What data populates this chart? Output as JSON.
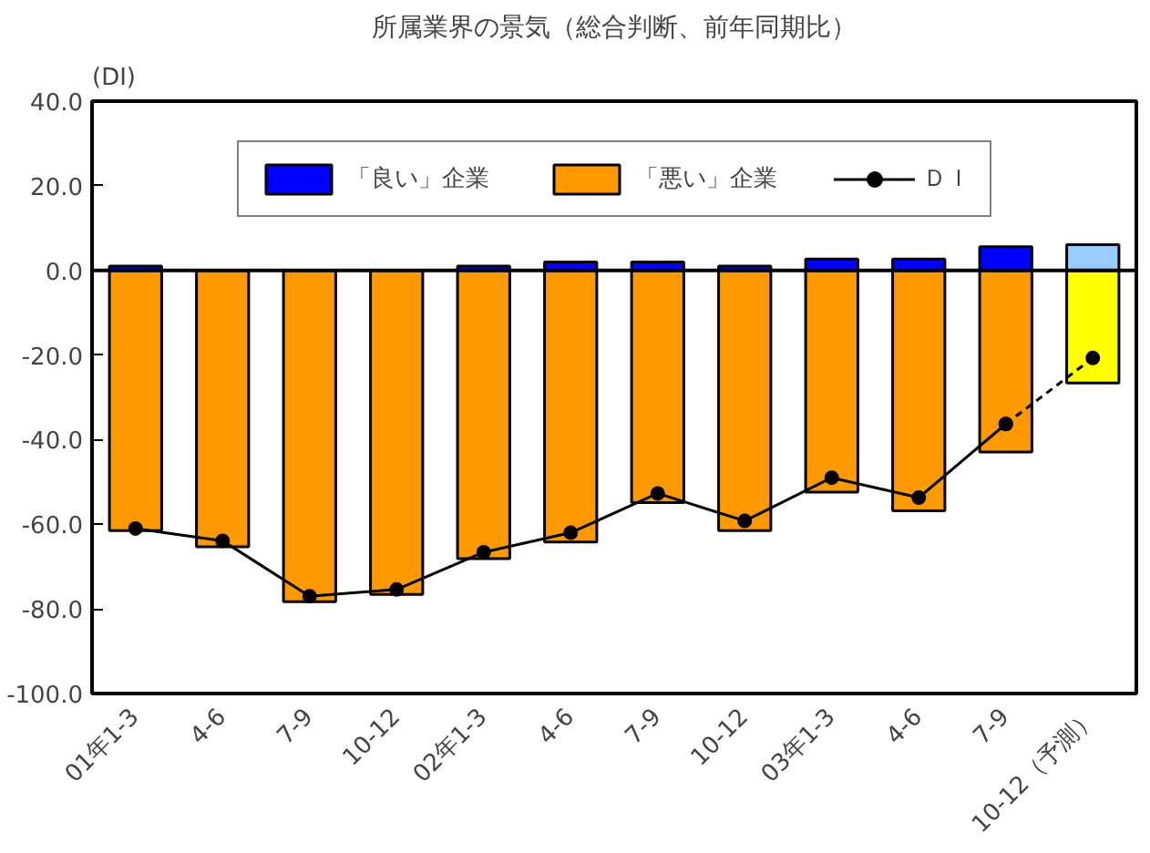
{
  "chart_data": {
    "type": "bar",
    "title": "所属業界の景気（総合判断、前年同期比）",
    "ylabel": "(DI)",
    "categories": [
      "01年1-3",
      "4-6",
      "7-9",
      "10-12",
      "02年1-3",
      "4-6",
      "7-9",
      "10-12",
      "03年1-3",
      "4-6",
      "7-9",
      "10-12（予測）"
    ],
    "series": [
      {
        "name": "「良い」企業",
        "color": "#0000ff",
        "colors": [
          "#0000ff",
          "#0000ff",
          "#0000ff",
          "#0000ff",
          "#0000ff",
          "#0000ff",
          "#0000ff",
          "#0000ff",
          "#0000ff",
          "#0000ff",
          "#0000ff",
          "#99ccff"
        ],
        "values": [
          1.0,
          null,
          null,
          null,
          1.0,
          2.0,
          2.0,
          1.0,
          2.7,
          2.7,
          5.6,
          6.1
        ]
      },
      {
        "name": "「悪い」企業",
        "color": "#ff9900",
        "colors": [
          "#ff9900",
          "#ff9900",
          "#ff9900",
          "#ff9900",
          "#ff9900",
          "#ff9900",
          "#ff9900",
          "#ff9900",
          "#ff9900",
          "#ff9900",
          "#ff9900",
          "#ffff00"
        ],
        "values": [
          -61.5,
          -65.3,
          -78.3,
          -76.6,
          -68.1,
          -64.2,
          -54.9,
          -61.5,
          -52.4,
          -56.8,
          -42.9,
          -26.6
        ]
      },
      {
        "name": "ＤＩ",
        "type": "line",
        "color": "#000000",
        "marker": "circle",
        "line_style": "solid",
        "values": [
          -61.0,
          -63.9,
          -77.0,
          -75.4,
          -66.6,
          -62.0,
          -52.7,
          -59.2,
          -49.0,
          -53.7,
          -36.3,
          null
        ]
      },
      {
        "type": "line",
        "color": "#000000",
        "marker": "circle",
        "line_style": "dashed",
        "values": [
          null,
          null,
          null,
          null,
          null,
          null,
          null,
          null,
          null,
          null,
          -36.3,
          -20.7
        ]
      }
    ],
    "ylim": [
      -100,
      40
    ],
    "yticks": [
      {
        "value": 40,
        "label": "40.0"
      },
      {
        "value": 20,
        "label": "20.0"
      },
      {
        "value": 0,
        "label": "0.0"
      },
      {
        "value": -20,
        "label": "-20.0"
      },
      {
        "value": -40,
        "label": "-40.0"
      },
      {
        "value": -60,
        "label": "-60.0"
      },
      {
        "value": -80,
        "label": "-80.0"
      },
      {
        "value": -100,
        "label": "-100.0"
      }
    ],
    "stacked": true,
    "ref_lines": [
      {
        "axis": "y",
        "value": 0
      }
    ],
    "legend": "top"
  }
}
